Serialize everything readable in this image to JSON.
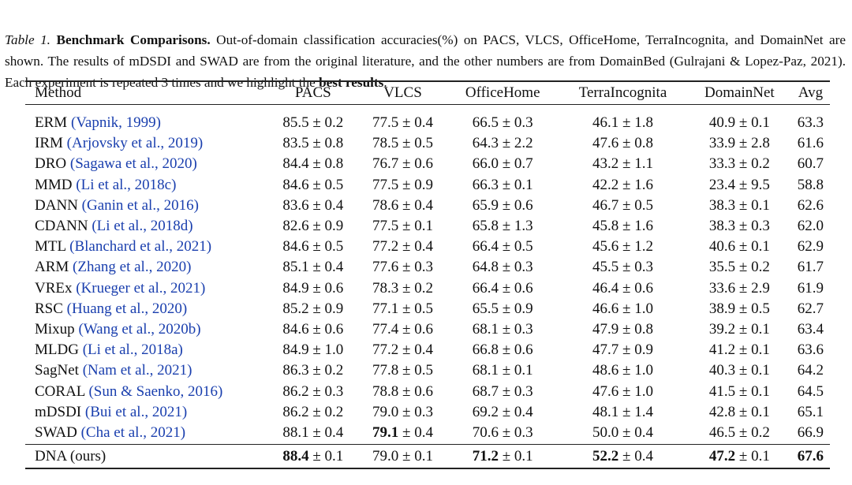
{
  "caption": {
    "label": "Table 1.",
    "title": "Benchmark Comparisons.",
    "text1": " Out-of-domain classification accuracies(%) on PACS, VLCS, OfficeHome, TerraIncognita, and DomainNet are shown. The results of mDSDI and SWAD are from the original literature, and the other numbers are from DomainBed (Gulrajani & Lopez-Paz, 2021). Each experiment is repeated 3 times and we highlight the ",
    "bold_phrase": "best results",
    "end": "."
  },
  "table": {
    "headers": [
      "Method",
      "PACS",
      "VLCS",
      "OfficeHome",
      "TerraIncognita",
      "DomainNet",
      "Avg"
    ],
    "rows": [
      {
        "method": "ERM",
        "cite": "(Vapnik, 1999)",
        "pacs": {
          "mean": "85.5",
          "std": "0.2"
        },
        "vlcs": {
          "mean": "77.5",
          "std": "0.4"
        },
        "officehome": {
          "mean": "66.5",
          "std": "0.3"
        },
        "terra": {
          "mean": "46.1",
          "std": "1.8"
        },
        "domainnet": {
          "mean": "40.9",
          "std": "0.1"
        },
        "avg": "63.3"
      },
      {
        "method": "IRM",
        "cite": "(Arjovsky et al., 2019)",
        "pacs": {
          "mean": "83.5",
          "std": "0.8"
        },
        "vlcs": {
          "mean": "78.5",
          "std": "0.5"
        },
        "officehome": {
          "mean": "64.3",
          "std": "2.2"
        },
        "terra": {
          "mean": "47.6",
          "std": "0.8"
        },
        "domainnet": {
          "mean": "33.9",
          "std": "2.8"
        },
        "avg": "61.6"
      },
      {
        "method": "DRO",
        "cite": "(Sagawa et al., 2020)",
        "pacs": {
          "mean": "84.4",
          "std": "0.8"
        },
        "vlcs": {
          "mean": "76.7",
          "std": "0.6"
        },
        "officehome": {
          "mean": "66.0",
          "std": "0.7"
        },
        "terra": {
          "mean": "43.2",
          "std": "1.1"
        },
        "domainnet": {
          "mean": "33.3",
          "std": "0.2"
        },
        "avg": "60.7"
      },
      {
        "method": "MMD",
        "cite": "(Li et al., 2018c)",
        "pacs": {
          "mean": "84.6",
          "std": "0.5"
        },
        "vlcs": {
          "mean": "77.5",
          "std": "0.9"
        },
        "officehome": {
          "mean": "66.3",
          "std": "0.1"
        },
        "terra": {
          "mean": "42.2",
          "std": "1.6"
        },
        "domainnet": {
          "mean": "23.4",
          "std": "9.5"
        },
        "avg": "58.8"
      },
      {
        "method": "DANN",
        "cite": "(Ganin et al., 2016)",
        "pacs": {
          "mean": "83.6",
          "std": "0.4"
        },
        "vlcs": {
          "mean": "78.6",
          "std": "0.4"
        },
        "officehome": {
          "mean": "65.9",
          "std": "0.6"
        },
        "terra": {
          "mean": "46.7",
          "std": "0.5"
        },
        "domainnet": {
          "mean": "38.3",
          "std": "0.1"
        },
        "avg": "62.6"
      },
      {
        "method": "CDANN",
        "cite": "(Li et al., 2018d)",
        "pacs": {
          "mean": "82.6",
          "std": "0.9"
        },
        "vlcs": {
          "mean": "77.5",
          "std": "0.1"
        },
        "officehome": {
          "mean": "65.8",
          "std": "1.3"
        },
        "terra": {
          "mean": "45.8",
          "std": "1.6"
        },
        "domainnet": {
          "mean": "38.3",
          "std": "0.3"
        },
        "avg": "62.0"
      },
      {
        "method": "MTL",
        "cite": "(Blanchard et al., 2021)",
        "pacs": {
          "mean": "84.6",
          "std": "0.5"
        },
        "vlcs": {
          "mean": "77.2",
          "std": "0.4"
        },
        "officehome": {
          "mean": "66.4",
          "std": "0.5"
        },
        "terra": {
          "mean": "45.6",
          "std": "1.2"
        },
        "domainnet": {
          "mean": "40.6",
          "std": "0.1"
        },
        "avg": "62.9"
      },
      {
        "method": "ARM",
        "cite": "(Zhang et al., 2020)",
        "pacs": {
          "mean": "85.1",
          "std": "0.4"
        },
        "vlcs": {
          "mean": "77.6",
          "std": "0.3"
        },
        "officehome": {
          "mean": "64.8",
          "std": "0.3"
        },
        "terra": {
          "mean": "45.5",
          "std": "0.3"
        },
        "domainnet": {
          "mean": "35.5",
          "std": "0.2"
        },
        "avg": "61.7"
      },
      {
        "method": "VREx",
        "cite": "(Krueger et al., 2021)",
        "pacs": {
          "mean": "84.9",
          "std": "0.6"
        },
        "vlcs": {
          "mean": "78.3",
          "std": "0.2"
        },
        "officehome": {
          "mean": "66.4",
          "std": "0.6"
        },
        "terra": {
          "mean": "46.4",
          "std": "0.6"
        },
        "domainnet": {
          "mean": "33.6",
          "std": "2.9"
        },
        "avg": "61.9"
      },
      {
        "method": "RSC",
        "cite": "(Huang et al., 2020)",
        "pacs": {
          "mean": "85.2",
          "std": "0.9"
        },
        "vlcs": {
          "mean": "77.1",
          "std": "0.5"
        },
        "officehome": {
          "mean": "65.5",
          "std": "0.9"
        },
        "terra": {
          "mean": "46.6",
          "std": "1.0"
        },
        "domainnet": {
          "mean": "38.9",
          "std": "0.5"
        },
        "avg": "62.7"
      },
      {
        "method": "Mixup",
        "cite": "(Wang et al., 2020b)",
        "pacs": {
          "mean": "84.6",
          "std": "0.6"
        },
        "vlcs": {
          "mean": "77.4",
          "std": "0.6"
        },
        "officehome": {
          "mean": "68.1",
          "std": "0.3"
        },
        "terra": {
          "mean": "47.9",
          "std": "0.8"
        },
        "domainnet": {
          "mean": "39.2",
          "std": "0.1"
        },
        "avg": "63.4"
      },
      {
        "method": "MLDG",
        "cite": "(Li et al., 2018a)",
        "pacs": {
          "mean": "84.9",
          "std": "1.0"
        },
        "vlcs": {
          "mean": "77.2",
          "std": "0.4"
        },
        "officehome": {
          "mean": "66.8",
          "std": "0.6"
        },
        "terra": {
          "mean": "47.7",
          "std": "0.9"
        },
        "domainnet": {
          "mean": "41.2",
          "std": "0.1"
        },
        "avg": "63.6"
      },
      {
        "method": "SagNet",
        "cite": "(Nam et al., 2021)",
        "pacs": {
          "mean": "86.3",
          "std": "0.2"
        },
        "vlcs": {
          "mean": "77.8",
          "std": "0.5"
        },
        "officehome": {
          "mean": "68.1",
          "std": "0.1"
        },
        "terra": {
          "mean": "48.6",
          "std": "1.0"
        },
        "domainnet": {
          "mean": "40.3",
          "std": "0.1"
        },
        "avg": "64.2"
      },
      {
        "method": "CORAL",
        "cite": "(Sun & Saenko, 2016)",
        "pacs": {
          "mean": "86.2",
          "std": "0.3"
        },
        "vlcs": {
          "mean": "78.8",
          "std": "0.6"
        },
        "officehome": {
          "mean": "68.7",
          "std": "0.3"
        },
        "terra": {
          "mean": "47.6",
          "std": "1.0"
        },
        "domainnet": {
          "mean": "41.5",
          "std": "0.1"
        },
        "avg": "64.5"
      },
      {
        "method": "mDSDI",
        "cite": "(Bui et al., 2021)",
        "pacs": {
          "mean": "86.2",
          "std": "0.2"
        },
        "vlcs": {
          "mean": "79.0",
          "std": "0.3"
        },
        "officehome": {
          "mean": "69.2",
          "std": "0.4"
        },
        "terra": {
          "mean": "48.1",
          "std": "1.4"
        },
        "domainnet": {
          "mean": "42.8",
          "std": "0.1"
        },
        "avg": "65.1"
      },
      {
        "method": "SWAD",
        "cite": "(Cha et al., 2021)",
        "pacs": {
          "mean": "88.1",
          "std": "0.4"
        },
        "vlcs": {
          "mean": "79.1",
          "std": "0.4"
        },
        "officehome": {
          "mean": "70.6",
          "std": "0.3"
        },
        "terra": {
          "mean": "50.0",
          "std": "0.4"
        },
        "domainnet": {
          "mean": "46.5",
          "std": "0.2"
        },
        "avg": "66.9"
      }
    ],
    "ours": {
      "method": "DNA (ours)",
      "pacs": {
        "mean": "88.4",
        "std": "0.1"
      },
      "vlcs": {
        "mean": "79.0",
        "std": "0.1"
      },
      "officehome": {
        "mean": "71.2",
        "std": "0.1"
      },
      "terra": {
        "mean": "52.2",
        "std": "0.4"
      },
      "domainnet": {
        "mean": "47.2",
        "std": "0.1"
      },
      "avg": "67.6"
    }
  }
}
